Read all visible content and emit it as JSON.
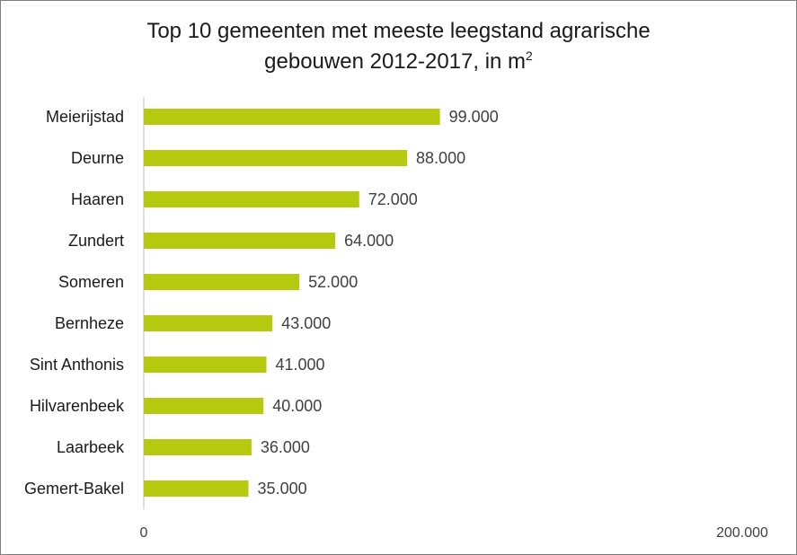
{
  "chart_data": {
    "type": "bar",
    "orientation": "horizontal",
    "title_line1": "Top 10 gemeenten met meeste leegstand agrarische",
    "title_line2": "gebouwen 2012-2017, in m",
    "title_superscript": "2",
    "categories": [
      "Meierijstad",
      "Deurne",
      "Haaren",
      "Zundert",
      "Someren",
      "Bernheze",
      "Sint Anthonis",
      "Hilvarenbeek",
      "Laarbeek",
      "Gemert-Bakel"
    ],
    "values": [
      99000,
      88000,
      72000,
      64000,
      52000,
      43000,
      41000,
      40000,
      36000,
      35000
    ],
    "value_labels": [
      "99.000",
      "88.000",
      "72.000",
      "64.000",
      "52.000",
      "43.000",
      "41.000",
      "40.000",
      "36.000",
      "35.000"
    ],
    "xlim": [
      0,
      200000
    ],
    "x_tick_labels": [
      "0",
      "200.000"
    ],
    "bar_color": "#b5c90e",
    "grid": false,
    "legend": false
  }
}
